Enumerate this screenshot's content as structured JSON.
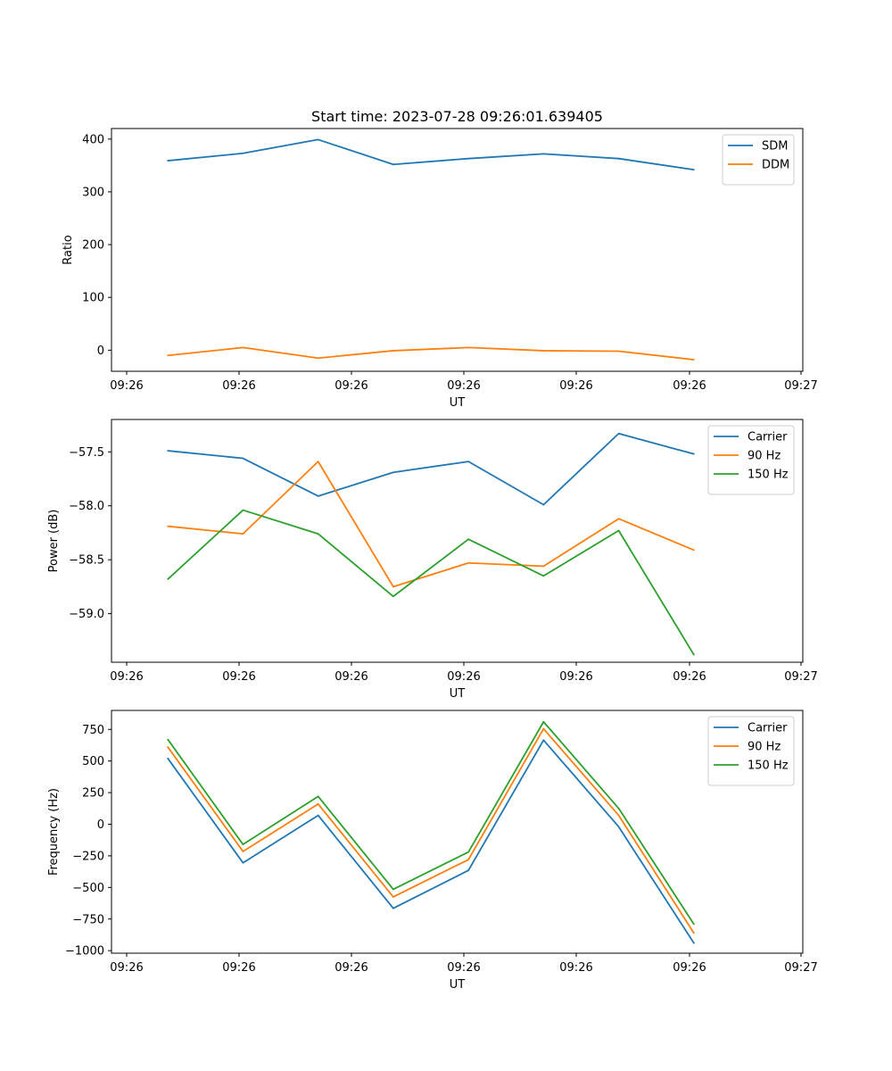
{
  "figure": {
    "title": "Start time: 2023-07-28 09:26:01.639405"
  },
  "chart_data": [
    {
      "type": "line",
      "xlabel": "UT",
      "ylabel": "Ratio",
      "x_tick_labels": [
        "09:26",
        "09:26",
        "09:26",
        "09:26",
        "09:26",
        "09:26",
        "09:27"
      ],
      "xlim": [
        -0.75,
        8.45
      ],
      "ylim": [
        -40,
        420
      ],
      "yticks": [
        0,
        100,
        200,
        300,
        400
      ],
      "ytick_labels": [
        "0",
        "100",
        "200",
        "300",
        "400"
      ],
      "x": [
        0,
        1,
        2,
        3,
        4,
        5,
        6,
        7
      ],
      "series": [
        {
          "name": "SDM",
          "color": "#1f77b4",
          "values": [
            359,
            373,
            399,
            352,
            363,
            372,
            363,
            342
          ]
        },
        {
          "name": "DDM",
          "color": "#ff7f0e",
          "values": [
            -10,
            5,
            -15,
            -1,
            5,
            -1,
            -2,
            -18
          ]
        }
      ]
    },
    {
      "type": "line",
      "xlabel": "UT",
      "ylabel": "Power (dB)",
      "x_tick_labels": [
        "09:26",
        "09:26",
        "09:26",
        "09:26",
        "09:26",
        "09:26",
        "09:27"
      ],
      "xlim": [
        -0.75,
        8.45
      ],
      "ylim": [
        -59.45,
        -57.2
      ],
      "yticks": [
        -57.5,
        -58.0,
        -58.5,
        -59.0
      ],
      "ytick_labels": [
        "−57.5",
        "−58.0",
        "−58.5",
        "−59.0"
      ],
      "x": [
        0,
        1,
        2,
        3,
        4,
        5,
        6,
        7
      ],
      "series": [
        {
          "name": "Carrier",
          "color": "#1f77b4",
          "values": [
            -57.49,
            -57.56,
            -57.91,
            -57.69,
            -57.59,
            -57.99,
            -57.33,
            -57.52
          ]
        },
        {
          "name": "90 Hz",
          "color": "#ff7f0e",
          "values": [
            -58.19,
            -58.26,
            -57.59,
            -58.75,
            -58.53,
            -58.56,
            -58.12,
            -58.41
          ]
        },
        {
          "name": "150 Hz",
          "color": "#2ca02c",
          "values": [
            -58.68,
            -58.04,
            -58.26,
            -58.84,
            -58.31,
            -58.65,
            -58.23,
            -59.38
          ]
        }
      ]
    },
    {
      "type": "line",
      "xlabel": "UT",
      "ylabel": "Frequency (Hz)",
      "x_tick_labels": [
        "09:26",
        "09:26",
        "09:26",
        "09:26",
        "09:26",
        "09:26",
        "09:27"
      ],
      "xlim": [
        -0.75,
        8.45
      ],
      "ylim": [
        -1020,
        900
      ],
      "yticks": [
        750,
        500,
        250,
        0,
        -250,
        -500,
        -750,
        -1000
      ],
      "ytick_labels": [
        "750",
        "500",
        "250",
        "0",
        "−250",
        "−500",
        "−750",
        "−1000"
      ],
      "x": [
        0,
        1,
        2,
        3,
        4,
        5,
        6,
        7
      ],
      "series": [
        {
          "name": "Carrier",
          "color": "#1f77b4",
          "values": [
            520,
            -305,
            70,
            -665,
            -365,
            665,
            -20,
            -940
          ]
        },
        {
          "name": "90 Hz",
          "color": "#ff7f0e",
          "values": [
            610,
            -215,
            160,
            -575,
            -280,
            755,
            70,
            -860
          ]
        },
        {
          "name": "150 Hz",
          "color": "#2ca02c",
          "values": [
            670,
            -160,
            220,
            -515,
            -220,
            810,
            125,
            -790
          ]
        }
      ]
    }
  ]
}
